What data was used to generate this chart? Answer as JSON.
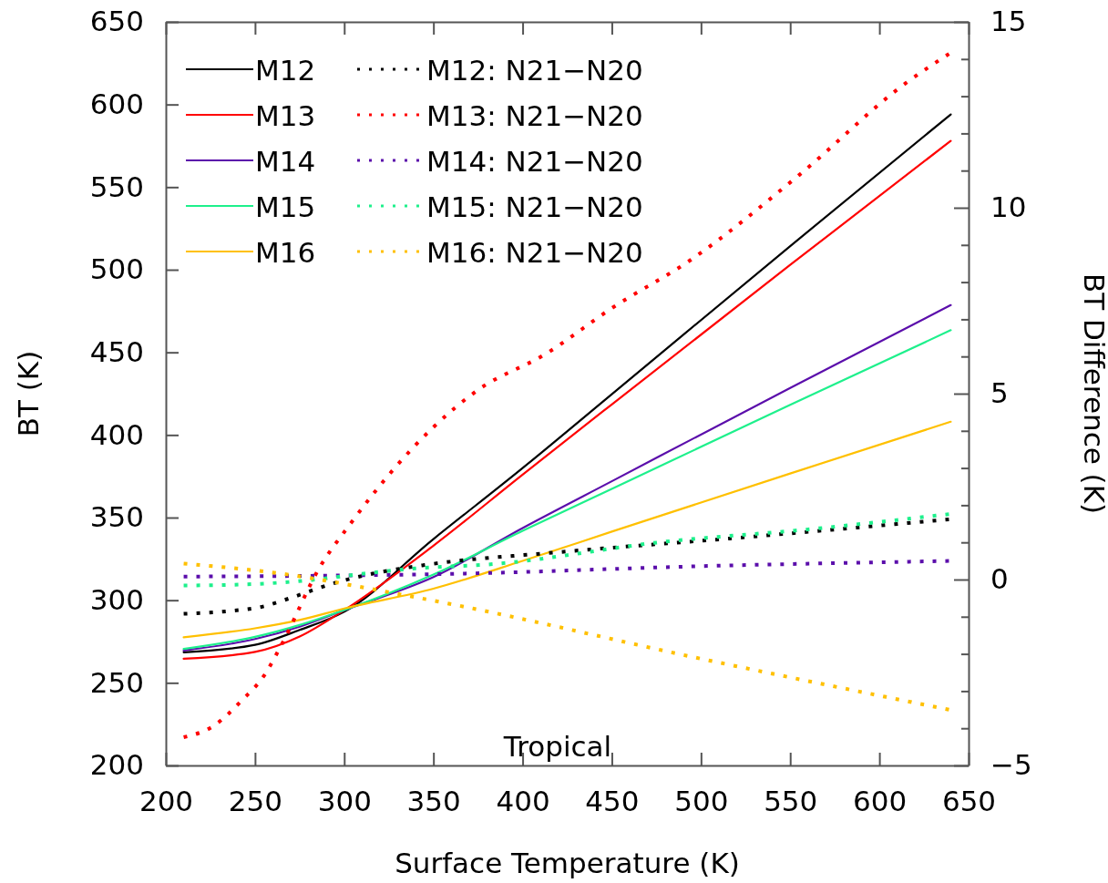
{
  "chart_data": {
    "type": "line",
    "xlabel": "Surface Temperature (K)",
    "ylabel": "BT (K)",
    "y2label": "BT Difference (K)",
    "xlim": [
      200,
      650
    ],
    "xticks": [
      200,
      250,
      300,
      350,
      400,
      450,
      500,
      550,
      600,
      650
    ],
    "ylim": [
      200,
      650
    ],
    "yticks": [
      200,
      250,
      300,
      350,
      400,
      450,
      500,
      550,
      600,
      650
    ],
    "y2lim": [
      -5,
      15
    ],
    "y2ticks": [
      -5,
      {
        "value": -4,
        "label": null
      },
      {
        "value": -3,
        "label": null
      },
      {
        "value": -2,
        "label": null
      },
      {
        "value": -1,
        "label": null
      },
      0,
      {
        "value": 1,
        "label": null
      },
      {
        "value": 2,
        "label": null
      },
      {
        "value": 3,
        "label": null
      },
      {
        "value": 4,
        "label": null
      },
      5,
      {
        "value": 6,
        "label": null
      },
      {
        "value": 7,
        "label": null
      },
      {
        "value": 8,
        "label": null
      },
      {
        "value": 9,
        "label": null
      },
      10,
      {
        "value": 11,
        "label": null
      },
      {
        "value": 12,
        "label": null
      },
      {
        "value": 13,
        "label": null
      },
      {
        "value": 14,
        "label": null
      },
      15
    ],
    "grid": false,
    "legend": "top left",
    "marker": "none",
    "annotations": [
      "Tropical"
    ],
    "series": [
      {
        "name": "M12",
        "color": "#000000",
        "line_style": "solid",
        "x": [
          210,
          250,
          275,
          300,
          350,
          400,
          450,
          550,
          640
        ],
        "values": [
          268.5,
          273,
          282,
          293,
          337,
          380,
          424.7,
          514.3,
          594
        ]
      },
      {
        "name": "M13",
        "color": "#ff0000",
        "line_style": "solid",
        "x": [
          210,
          250,
          275,
          300,
          350,
          400,
          450,
          550,
          640
        ],
        "values": [
          264.6,
          268.7,
          278,
          294,
          333,
          376,
          418.5,
          502.9,
          578
        ]
      },
      {
        "name": "M14",
        "color": "#5b0eab",
        "line_style": "solid",
        "x": [
          210,
          250,
          275,
          300,
          350,
          400,
          450,
          550,
          640
        ],
        "values": [
          269.6,
          276.5,
          284,
          294,
          314,
          343.7,
          372,
          428.5,
          478.6
        ]
      },
      {
        "name": "M15",
        "color": "#1ef08c",
        "line_style": "solid",
        "x": [
          210,
          250,
          275,
          300,
          350,
          400,
          450,
          550,
          640
        ],
        "values": [
          270.5,
          277.8,
          285,
          294,
          315.5,
          342,
          367.4,
          418.2,
          463.4
        ]
      },
      {
        "name": "M16",
        "color": "#ffc000",
        "line_style": "solid",
        "x": [
          210,
          250,
          275,
          300,
          350,
          400,
          450,
          550,
          640
        ],
        "values": [
          277.6,
          283,
          288,
          295,
          307,
          323.8,
          341.5,
          376.7,
          408
        ]
      },
      {
        "name": "M12: N21−N20",
        "color": "#000000",
        "line_style": "dotted",
        "axis": "y2",
        "x": [
          210,
          235,
          255,
          269,
          294,
          316,
          345,
          421,
          520,
          639
        ],
        "values": [
          -0.92,
          -0.85,
          -0.72,
          -0.51,
          -0.1,
          0.16,
          0.39,
          0.74,
          1.12,
          1.62
        ]
      },
      {
        "name": "M13: N21−N20",
        "color": "#ff0000",
        "line_style": "dotted",
        "axis": "y2",
        "x": [
          210,
          226,
          243,
          255,
          265,
          286,
          303,
          329,
          350,
          375,
          413,
          450,
          494,
          555,
          615,
          639
        ],
        "values": [
          -4.24,
          -3.96,
          -3.23,
          -2.59,
          -1.74,
          0.31,
          1.47,
          3.04,
          4.1,
          5.1,
          6.07,
          7.3,
          8.59,
          10.88,
          13.36,
          14.14
        ]
      },
      {
        "name": "M14: N21−N20",
        "color": "#5b0eab",
        "line_style": "dotted",
        "axis": "y2",
        "x": [
          210,
          300,
          366,
          500,
          639
        ],
        "values": [
          0.08,
          0.11,
          0.16,
          0.36,
          0.5
        ]
      },
      {
        "name": "M15: N21−N20",
        "color": "#1ef08c",
        "line_style": "dotted",
        "axis": "y2",
        "x": [
          210,
          250,
          282,
          311,
          340,
          382,
          480,
          560,
          639
        ],
        "values": [
          -0.16,
          -0.12,
          -0.01,
          0.16,
          0.3,
          0.41,
          1.02,
          1.35,
          1.76
        ]
      },
      {
        "name": "M16: N21−N20",
        "color": "#ffc000",
        "line_style": "dotted",
        "axis": "y2",
        "x": [
          210,
          269,
          325,
          362,
          500,
          639
        ],
        "values": [
          0.43,
          0.13,
          -0.34,
          -0.68,
          -2.13,
          -3.5
        ]
      }
    ]
  }
}
